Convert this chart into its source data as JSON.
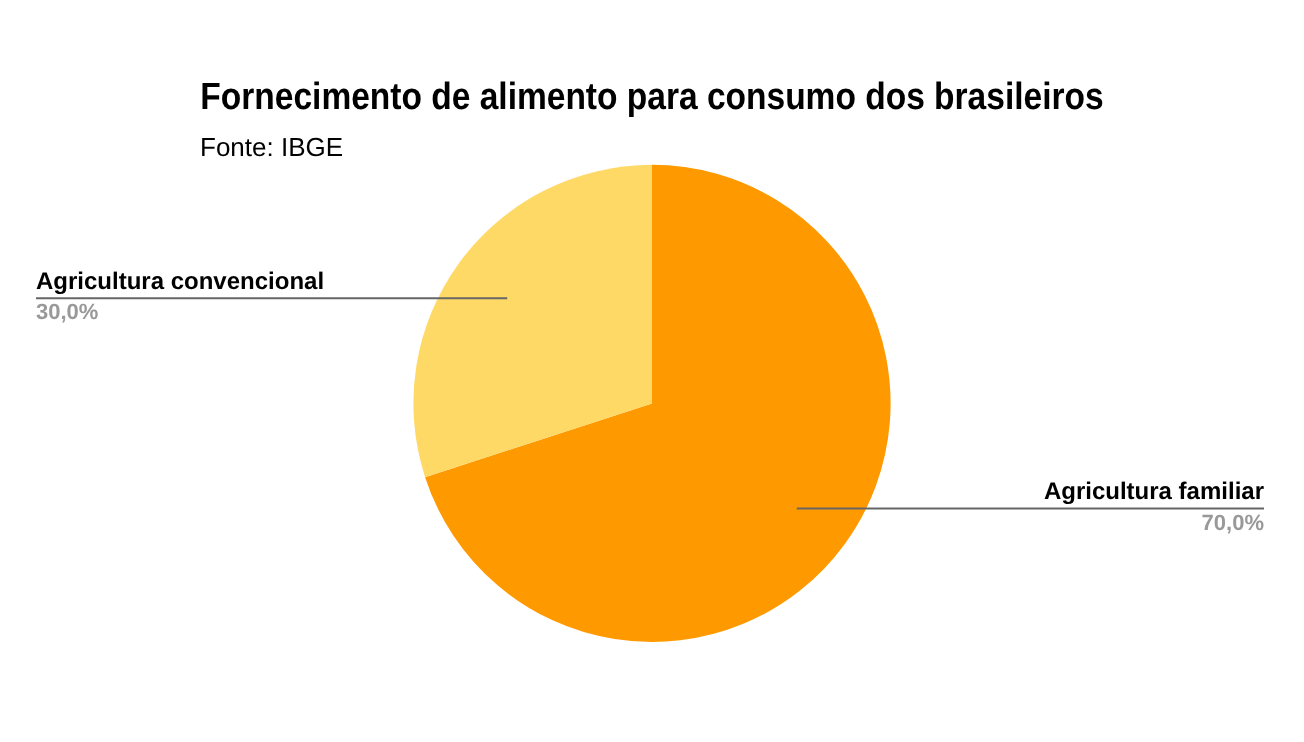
{
  "chart_data": {
    "type": "pie",
    "title": "Fornecimento de alimento para consumo dos brasileiros",
    "subtitle": "Fonte: IBGE",
    "categories": [
      "Agricultura familiar",
      "Agricultura convencional"
    ],
    "values": [
      70,
      30
    ],
    "colors": [
      "#ff9900",
      "#ffd966"
    ],
    "value_labels": [
      "70,0%",
      "30,0%"
    ],
    "legend": false
  }
}
